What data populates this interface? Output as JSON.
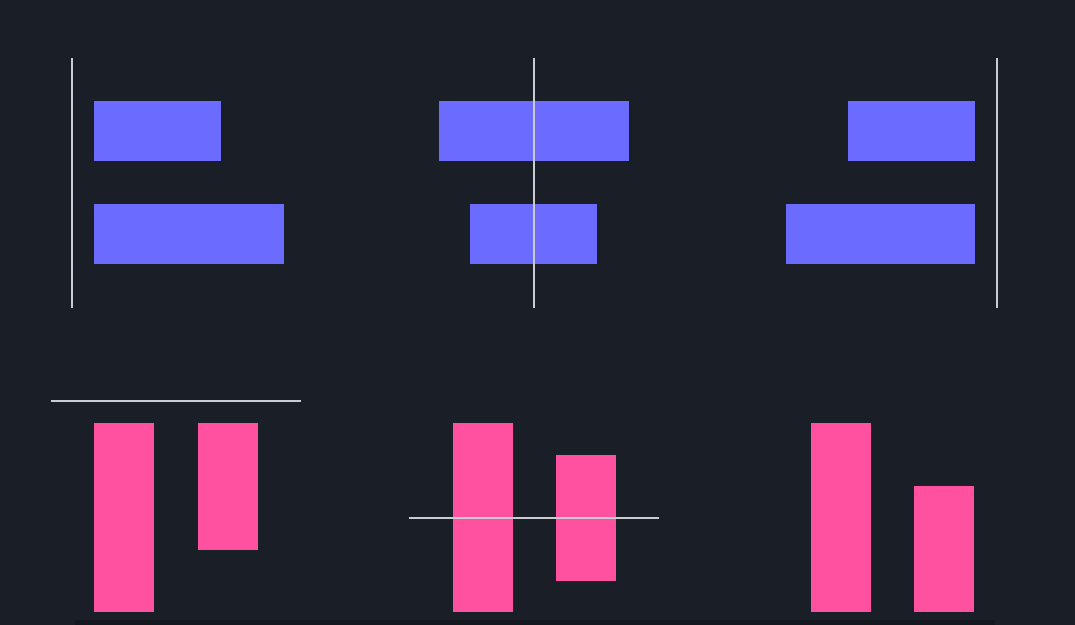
{
  "colors": {
    "background": "#1a1f27",
    "horizontal_bar": "#6b6bff",
    "vertical_bar": "#ff519f",
    "guide_line": "#c9ccd1"
  },
  "groups": [
    {
      "orientation": "horizontal",
      "alignment": "start"
    },
    {
      "orientation": "horizontal",
      "alignment": "center"
    },
    {
      "orientation": "horizontal",
      "alignment": "end"
    },
    {
      "orientation": "vertical",
      "alignment": "start"
    },
    {
      "orientation": "vertical",
      "alignment": "center"
    },
    {
      "orientation": "vertical",
      "alignment": "end"
    }
  ]
}
